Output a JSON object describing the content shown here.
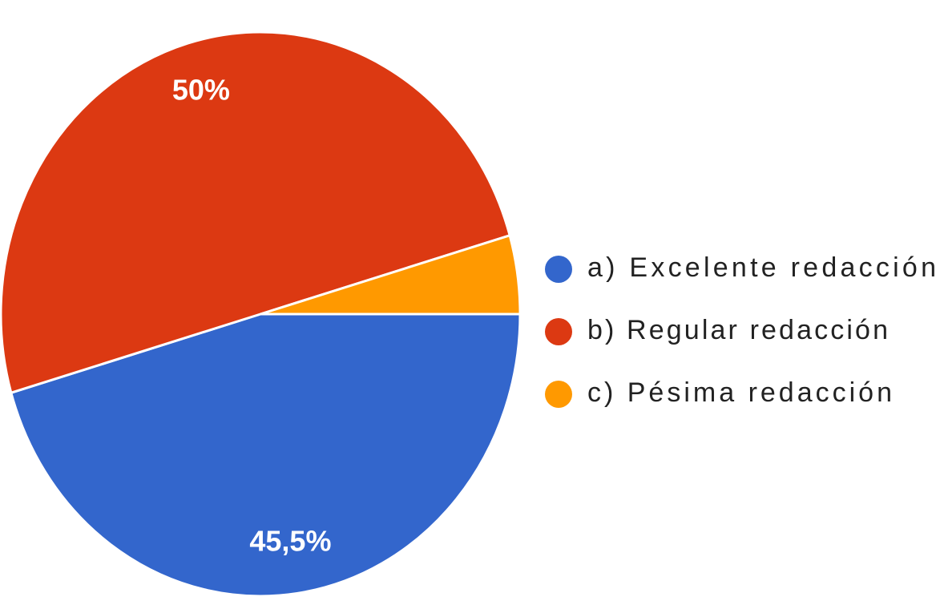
{
  "chart_data": {
    "type": "pie",
    "categories": [
      "a) Excelente redacción",
      "b) Regular redacción",
      "c) Pésima redacción"
    ],
    "values": [
      45.5,
      50,
      4.5
    ],
    "value_labels": [
      "45,5%",
      "50%",
      null
    ],
    "colors": [
      "#3366cc",
      "#dc3912",
      "#ff9900"
    ],
    "legend": "right"
  }
}
